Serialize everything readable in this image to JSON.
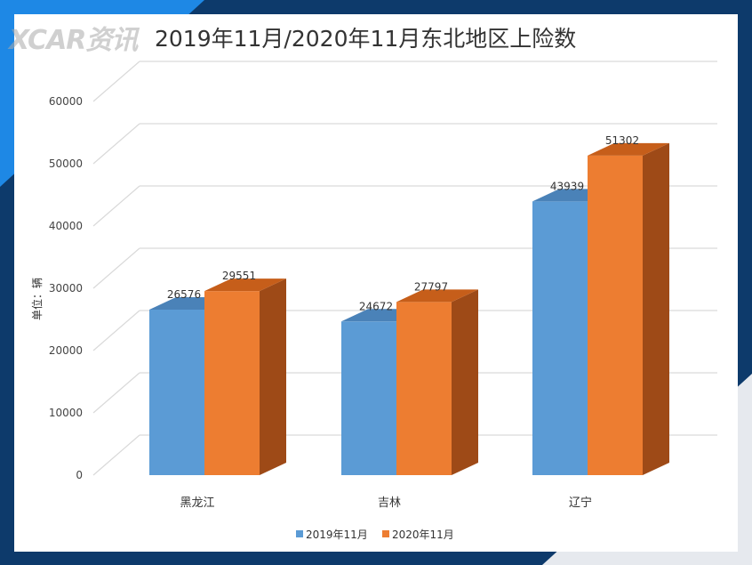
{
  "logo": "XCAR资讯",
  "colors": {
    "series1": "#5b9bd5",
    "series1_top": "#4a82b8",
    "series2": "#ed7d31",
    "series2_top": "#c65e1a",
    "series2_side": "#9e4a17",
    "grid": "#d9d9d9",
    "background_frame": "#0d3a6b"
  },
  "chart_data": {
    "type": "bar",
    "title": "2019年11月/2020年11月东北地区上险数",
    "ylabel": "单位：辆",
    "xlabel": "",
    "categories": [
      "黑龙江",
      "吉林",
      "辽宁"
    ],
    "ylim": [
      0,
      60000
    ],
    "yticks": [
      0,
      10000,
      20000,
      30000,
      40000,
      50000,
      60000
    ],
    "grid": true,
    "legend_position": "bottom",
    "series": [
      {
        "name": "2019年11月",
        "values": [
          26576,
          24672,
          43939
        ]
      },
      {
        "name": "2020年11月",
        "values": [
          29551,
          27797,
          51302
        ]
      }
    ]
  }
}
